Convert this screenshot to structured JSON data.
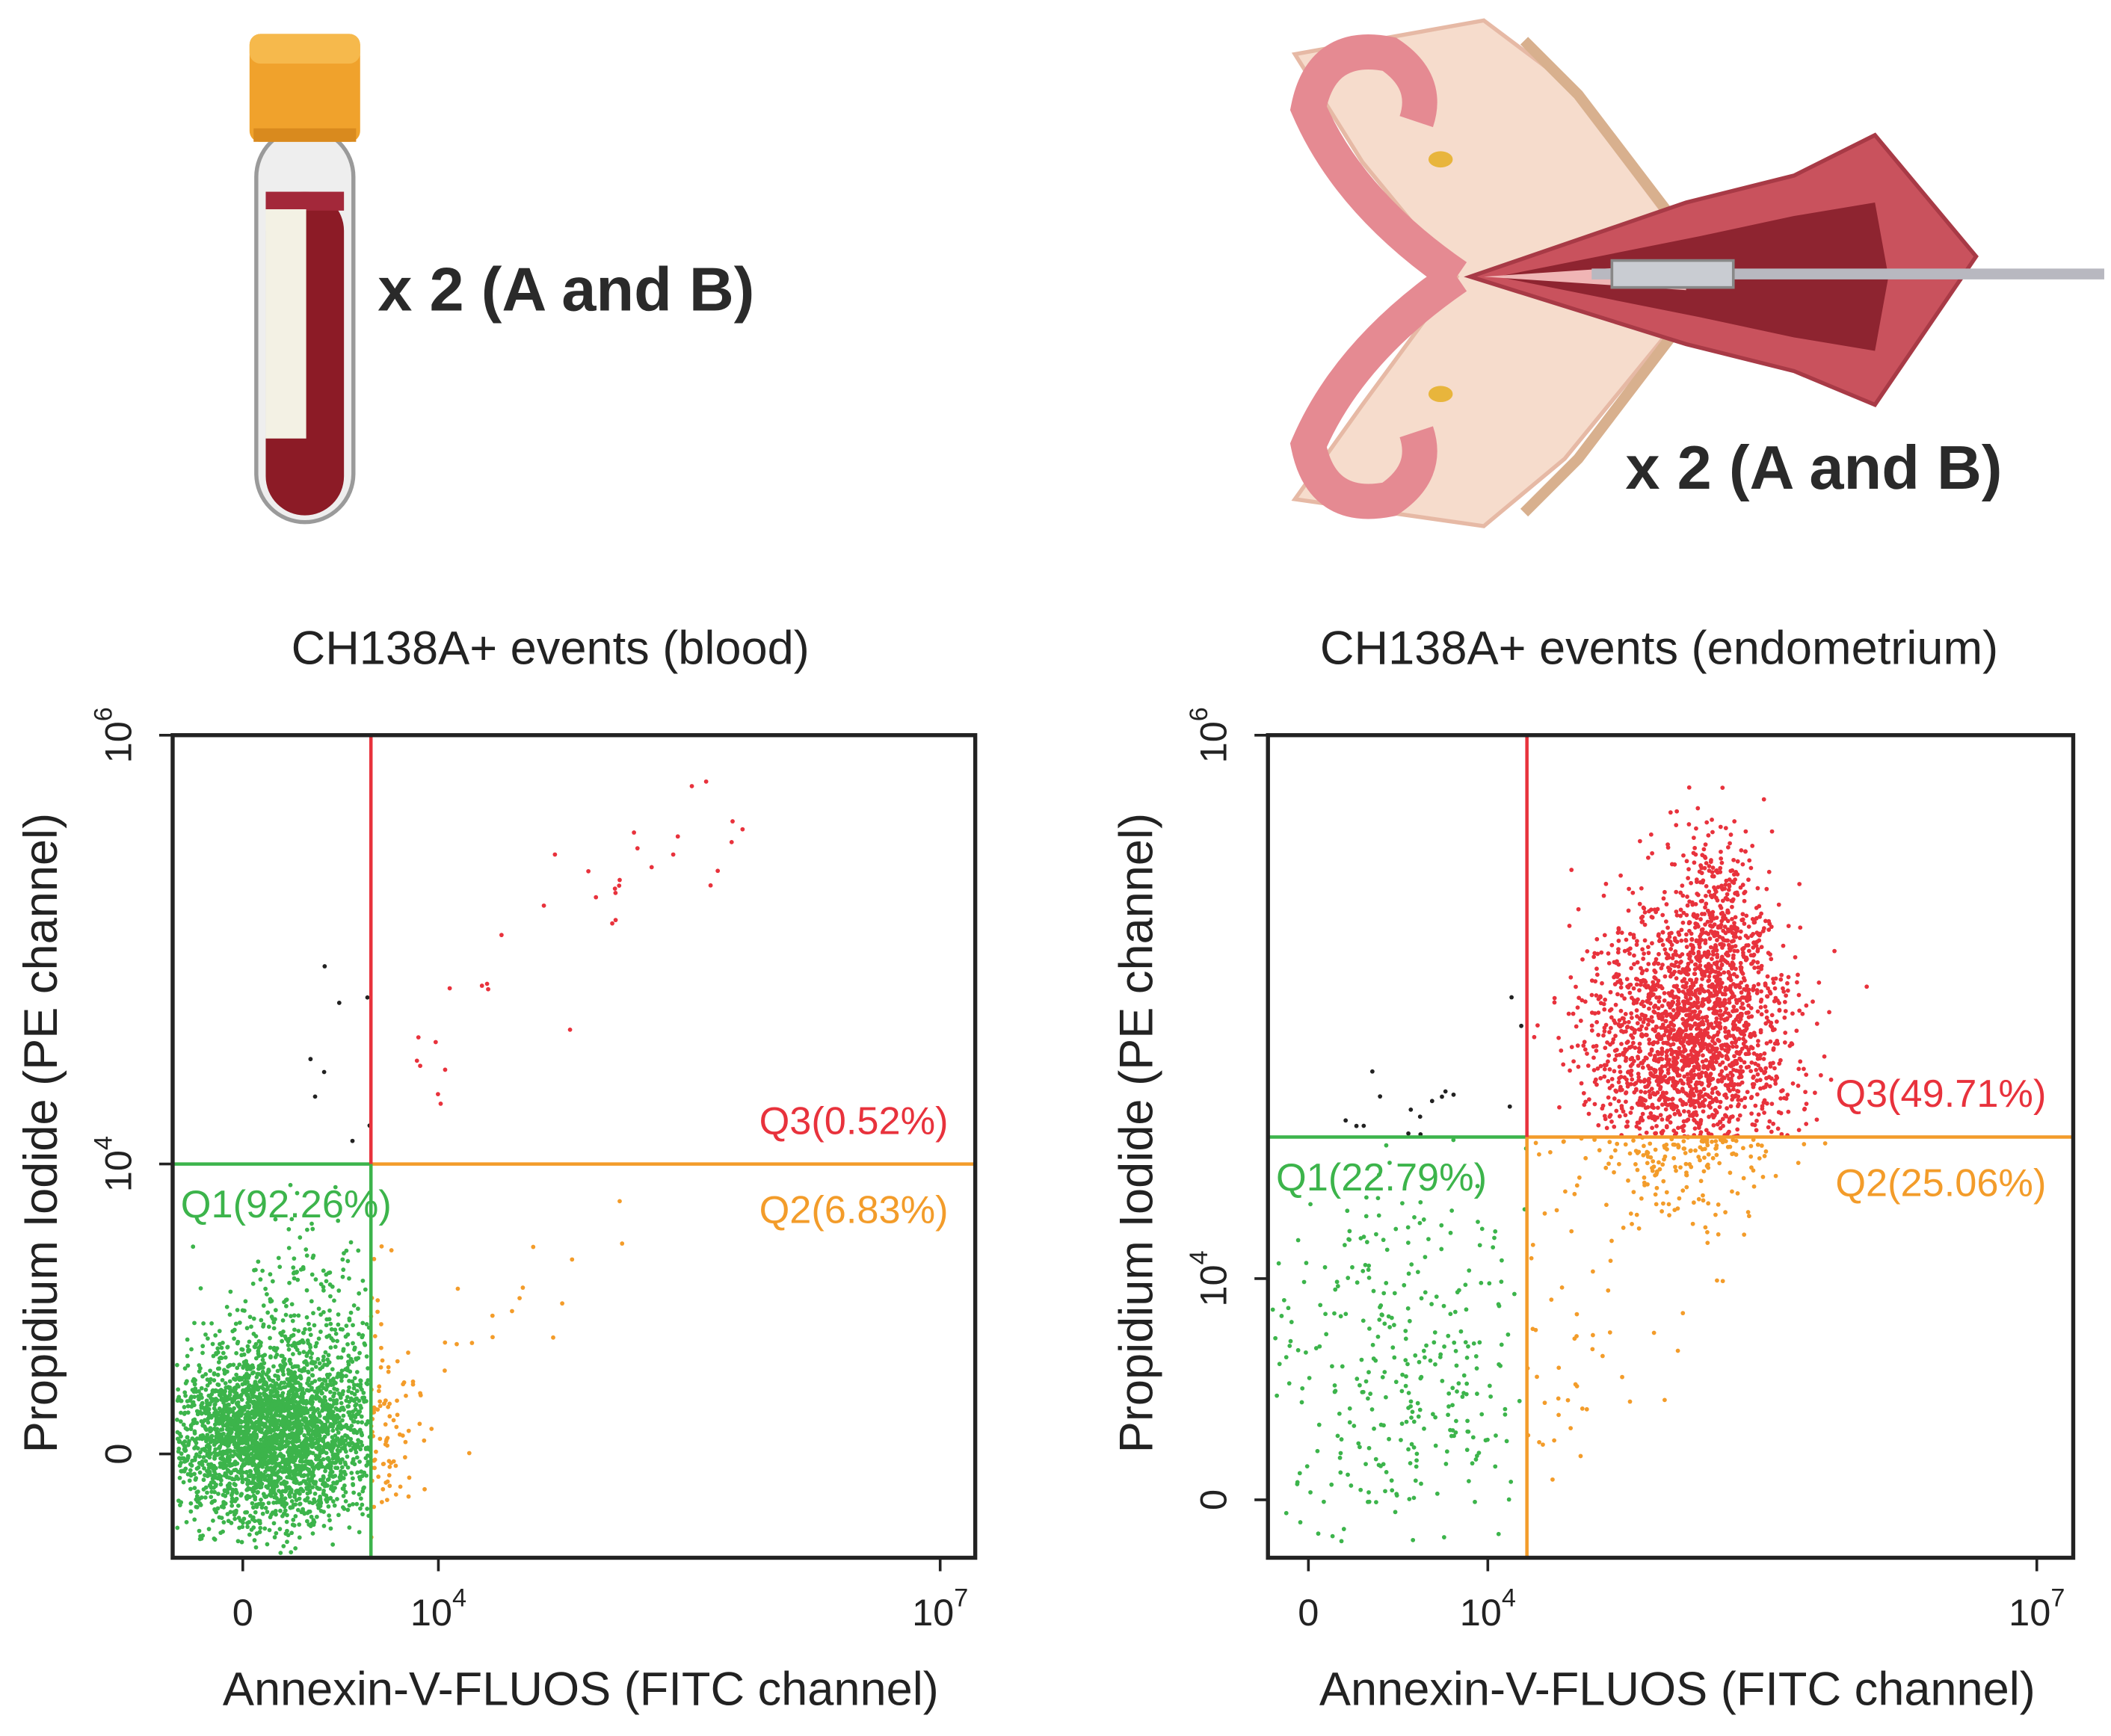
{
  "panels": [
    {
      "caption": "x 2 (A and B)"
    },
    {
      "caption": "x 2 (A and B)"
    }
  ],
  "plots": [
    {
      "title": "CH138A+ events (blood)",
      "x_label": "Annexin-V-FLUOS (FITC channel)",
      "y_label": "Propidium Iodide (PE channel)",
      "x_ticks": [
        {
          "base": "0"
        },
        {
          "base": "10",
          "exp": "4"
        },
        {
          "base": "10",
          "exp": "7"
        }
      ],
      "y_ticks": [
        {
          "base": "10",
          "exp": "6"
        },
        {
          "base": "10",
          "exp": "4"
        },
        {
          "base": "0"
        }
      ],
      "quadrants": {
        "q1": "Q1(92.26%)",
        "q2": "Q2(6.83%)",
        "q3": "Q3(0.52%)"
      }
    },
    {
      "title": "CH138A+ events (endometrium)",
      "x_label": "Annexin-V-FLUOS (FITC channel)",
      "y_label": "Propidium Iodide (PE channel)",
      "x_ticks": [
        {
          "base": "0"
        },
        {
          "base": "10",
          "exp": "4"
        },
        {
          "base": "10",
          "exp": "7"
        }
      ],
      "y_ticks": [
        {
          "base": "10",
          "exp": "6"
        },
        {
          "base": "10",
          "exp": "4"
        },
        {
          "base": "0"
        }
      ],
      "quadrants": {
        "q1": "Q1(22.79%)",
        "q2": "Q2(25.06%)",
        "q3": "Q3(49.71%)"
      }
    }
  ]
}
